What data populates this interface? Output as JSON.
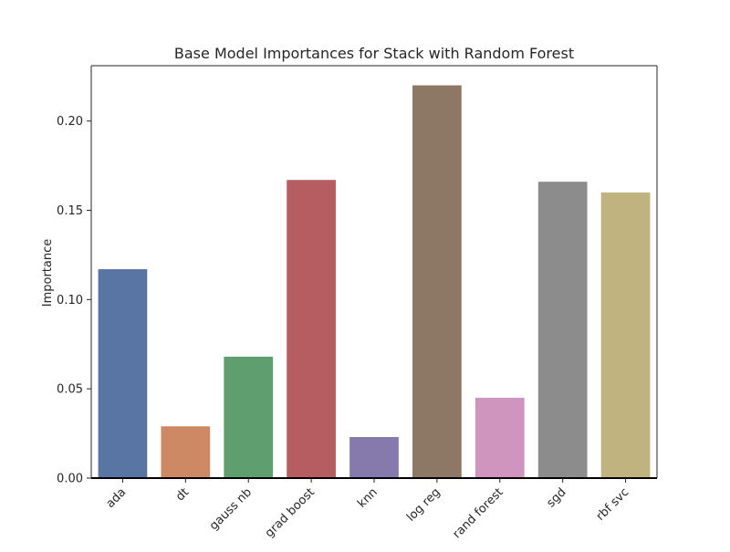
{
  "chart_data": {
    "type": "bar",
    "title": "Base Model Importances for Stack with Random Forest",
    "xlabel": "",
    "ylabel": "Importance",
    "categories": [
      "ada",
      "dt",
      "gauss nb",
      "grad boost",
      "knn",
      "log reg",
      "rand forest",
      "sgd",
      "rbf svc"
    ],
    "values": [
      0.117,
      0.029,
      0.068,
      0.167,
      0.023,
      0.22,
      0.045,
      0.166,
      0.16
    ],
    "ylim": [
      0,
      0.231
    ],
    "yticks": [
      0.0,
      0.05,
      0.1,
      0.15,
      0.2
    ],
    "ytick_labels": [
      "0.00",
      "0.05",
      "0.10",
      "0.15",
      "0.20"
    ],
    "colors": [
      "#5875a4",
      "#cc8963",
      "#5f9e6e",
      "#b55d60",
      "#857aab",
      "#8d7866",
      "#d095bf",
      "#8c8c8c",
      "#c1b37f"
    ],
    "grid": false,
    "legend": "none"
  }
}
